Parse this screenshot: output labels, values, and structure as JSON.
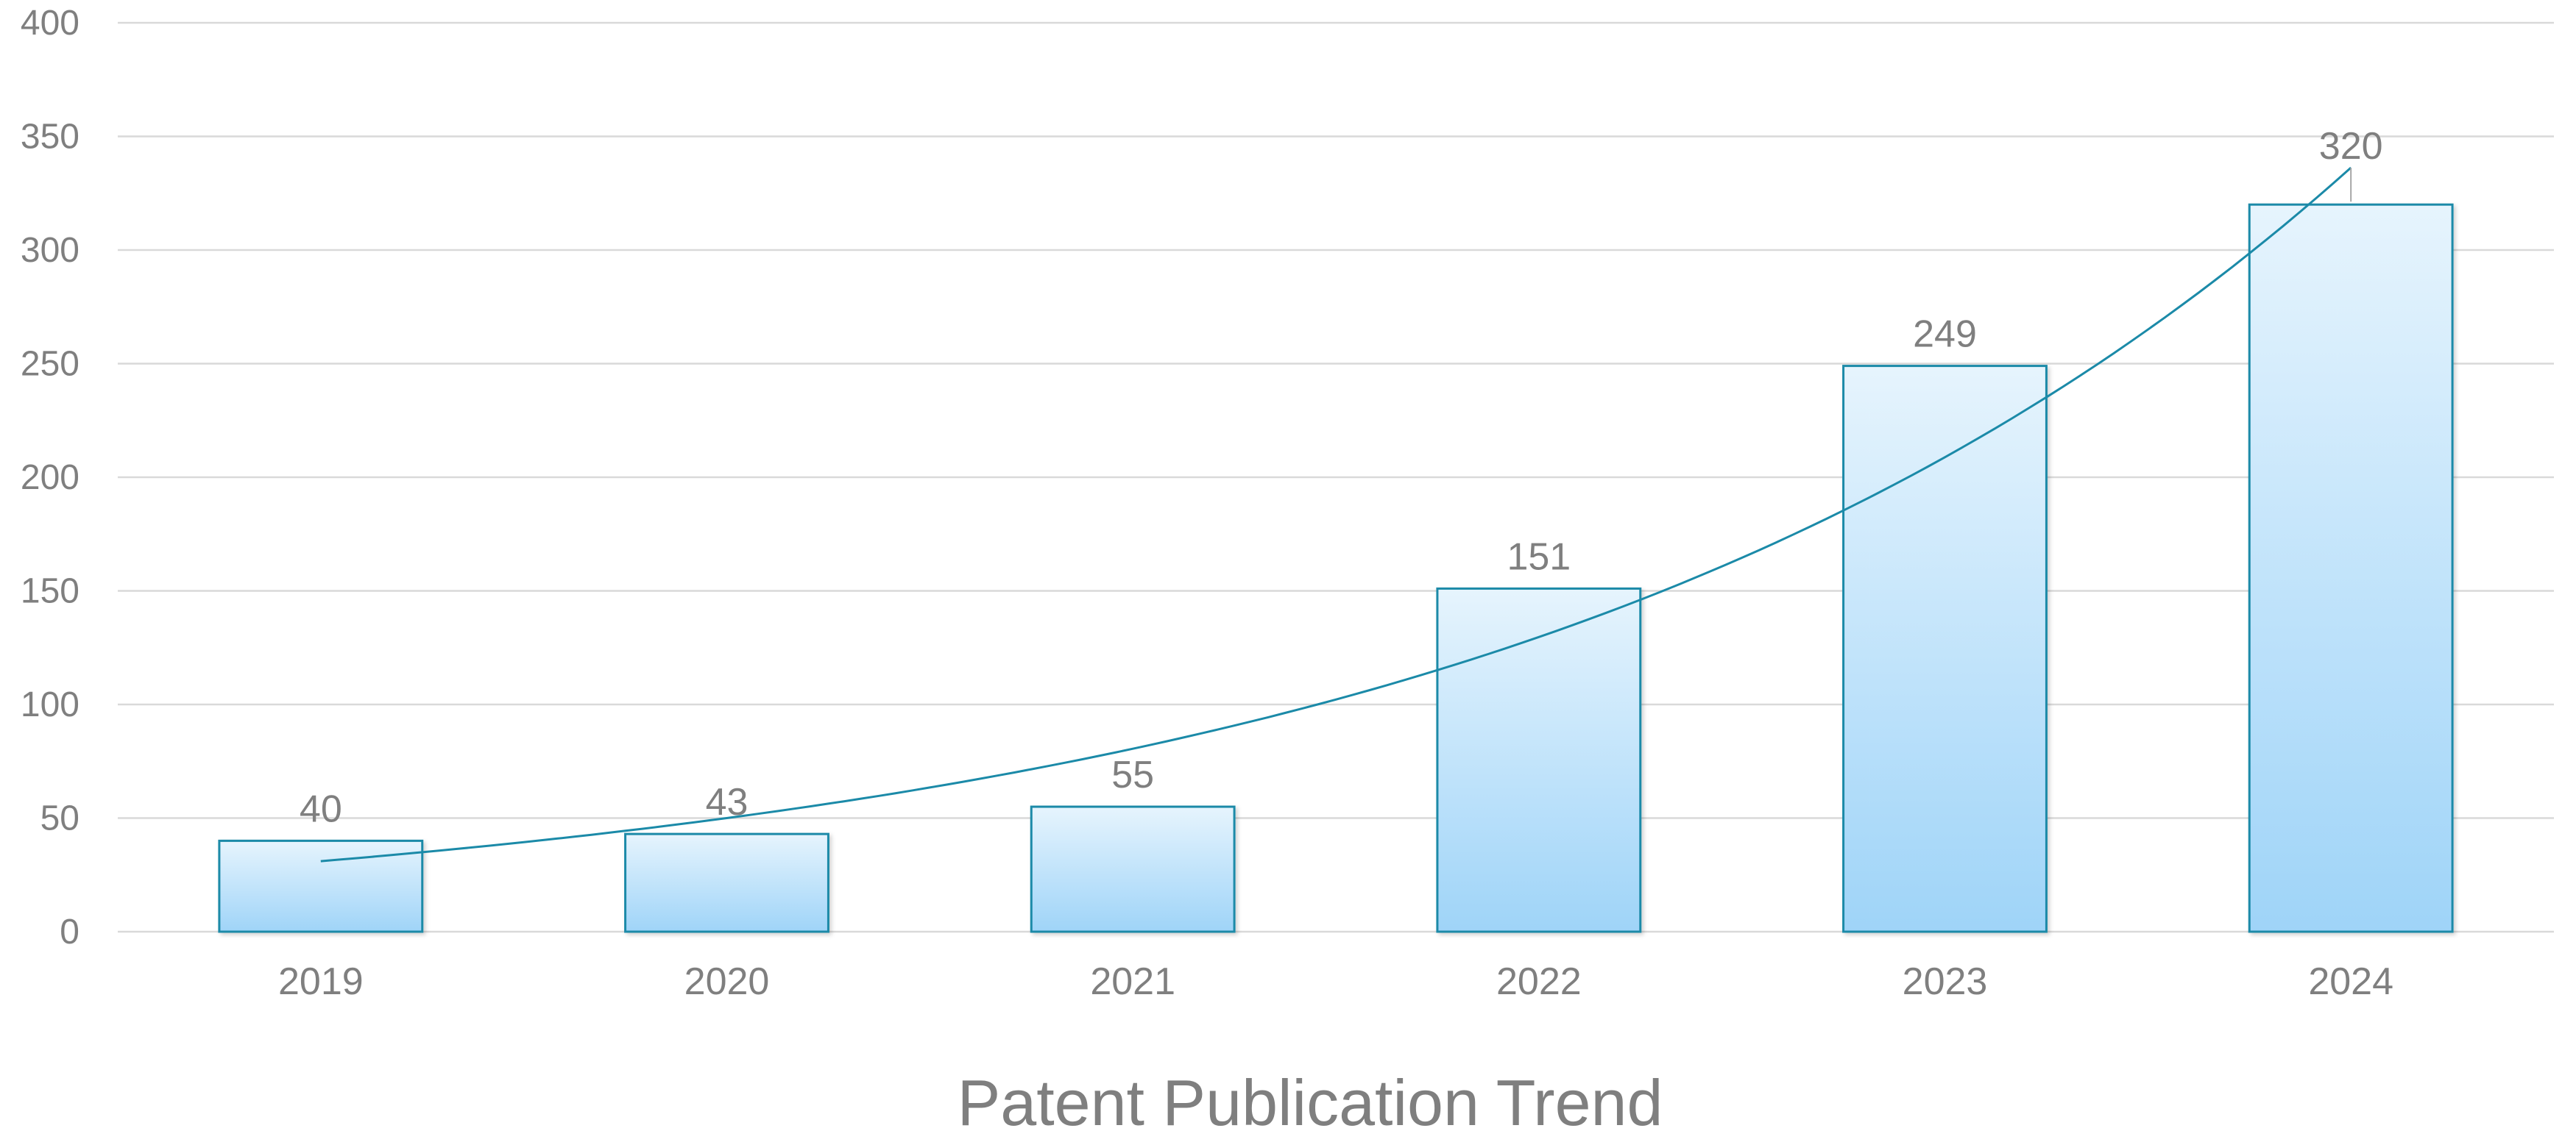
{
  "chart_data": {
    "type": "bar",
    "title": "Patent Publication Trend",
    "xlabel": "",
    "ylabel": "",
    "categories": [
      "2019",
      "2020",
      "2021",
      "2022",
      "2023",
      "2024"
    ],
    "values": [
      40,
      43,
      55,
      151,
      249,
      320
    ],
    "data_labels": [
      "40",
      "43",
      "55",
      "151",
      "249",
      "320"
    ],
    "ylim": [
      0,
      400
    ],
    "y_ticks": [
      0,
      50,
      100,
      150,
      200,
      250,
      300,
      350,
      400
    ],
    "y_tick_labels": [
      "0",
      "50",
      "100",
      "150",
      "200",
      "250",
      "300",
      "350",
      "400"
    ],
    "grid": true,
    "legend": "none",
    "trendline": {
      "type": "exponential"
    },
    "colors": {
      "bar_fill_top": "#e6f4fd",
      "bar_fill_bottom": "#9fd4f8",
      "bar_border": "#1b8aa8",
      "trendline": "#1b8aa8",
      "text": "#7f7f7f",
      "grid": "#d9d9d9"
    }
  }
}
